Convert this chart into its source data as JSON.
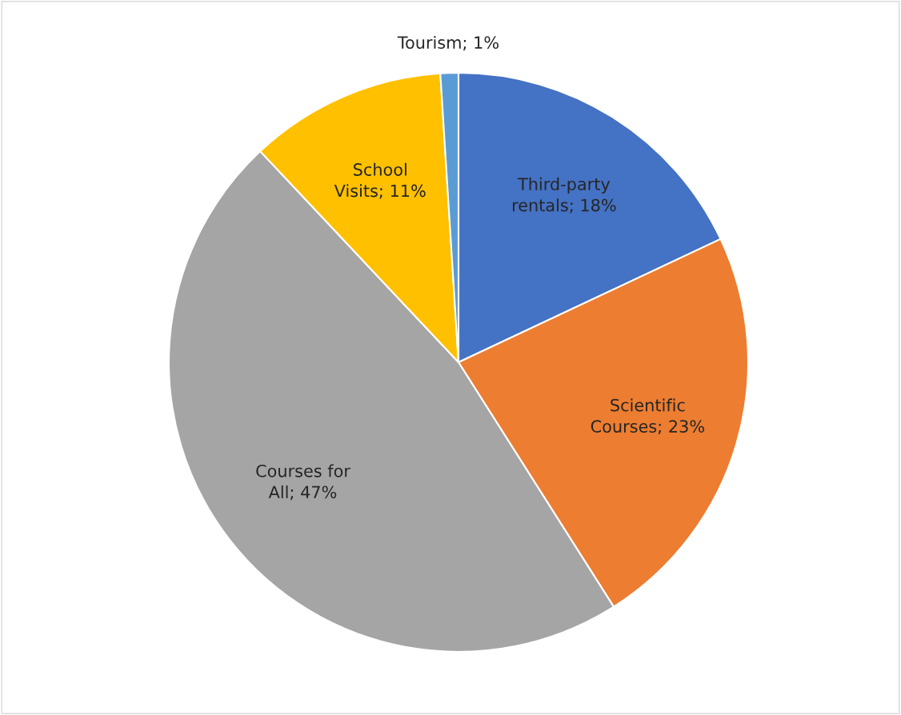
{
  "chart_data": {
    "type": "pie",
    "categories": [
      "Third-party rentals",
      "Scientific Courses",
      "Courses for All",
      "School Visits",
      "Tourism"
    ],
    "values": [
      18,
      23,
      47,
      11,
      1
    ],
    "value_labels": [
      "18%",
      "23%",
      "47%",
      "11%",
      "1%"
    ],
    "colors": [
      "#4472c4",
      "#ed7d31",
      "#a5a5a5",
      "#ffc000",
      "#5b9bd5"
    ]
  }
}
